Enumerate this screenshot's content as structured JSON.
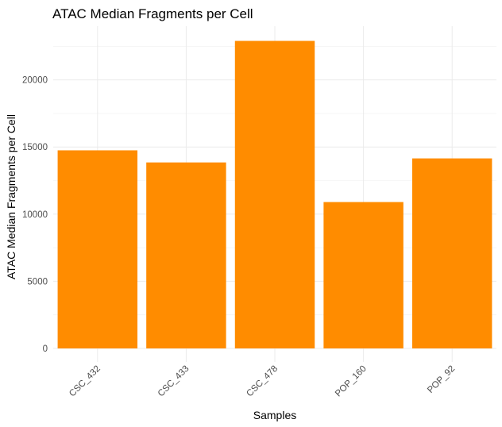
{
  "chart_data": {
    "type": "bar",
    "title": "ATAC Median Fragments per Cell",
    "xlabel": "Samples",
    "ylabel": "ATAC Median Fragments per Cell",
    "categories": [
      "CSC_432",
      "CSC_433",
      "CSC_478",
      "POP_160",
      "POP_92"
    ],
    "values": [
      14750,
      13850,
      22900,
      10900,
      14150
    ],
    "ylim": [
      0,
      24000
    ],
    "yticks": [
      "0",
      "5000",
      "10000",
      "15000",
      "20000"
    ],
    "bar_color": "#ff8c00",
    "grid": true,
    "legend": "none"
  }
}
